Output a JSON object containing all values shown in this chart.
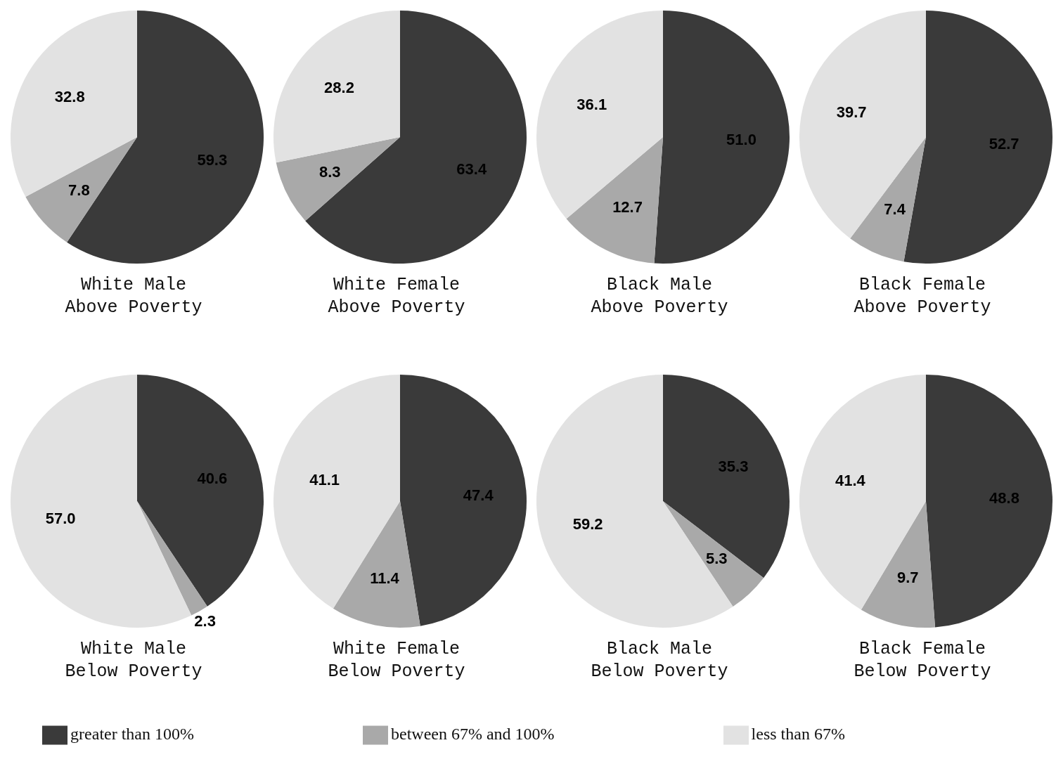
{
  "chart_data": [
    {
      "type": "pie",
      "title": "White Male\nAbove Poverty",
      "categories": [
        null,
        null,
        null
      ],
      "values": [
        59.3,
        7.8,
        32.8
      ],
      "value_labels": [
        "59.3",
        "7.8",
        "32.8"
      ],
      "colors": [
        "#3a3a3a",
        "#a9a9a9",
        "#e2e2e2"
      ]
    },
    {
      "type": "pie",
      "title": "White Female\nAbove Poverty",
      "categories": [
        null,
        null,
        null
      ],
      "values": [
        63.4,
        8.3,
        28.2
      ],
      "value_labels": [
        "63.4",
        "8.3",
        "28.2"
      ],
      "colors": [
        "#3a3a3a",
        "#a9a9a9",
        "#e2e2e2"
      ]
    },
    {
      "type": "pie",
      "title": "Black Male\nAbove Poverty",
      "categories": [
        null,
        null,
        null
      ],
      "values": [
        51.0,
        12.7,
        36.1
      ],
      "value_labels": [
        "51.0",
        "12.7",
        "36.1"
      ],
      "colors": [
        "#3a3a3a",
        "#a9a9a9",
        "#e2e2e2"
      ]
    },
    {
      "type": "pie",
      "title": "Black Female\nAbove Poverty",
      "categories": [
        null,
        null,
        null
      ],
      "values": [
        52.7,
        7.4,
        39.7
      ],
      "value_labels": [
        "52.7",
        "7.4",
        "39.7"
      ],
      "colors": [
        "#3a3a3a",
        "#a9a9a9",
        "#e2e2e2"
      ]
    },
    {
      "type": "pie",
      "title": "White Male\nBelow Poverty",
      "categories": [
        null,
        null,
        null
      ],
      "values": [
        40.6,
        2.3,
        57.0
      ],
      "value_labels": [
        "40.6",
        "2.3",
        "57.0"
      ],
      "colors": [
        "#3a3a3a",
        "#a9a9a9",
        "#e2e2e2"
      ]
    },
    {
      "type": "pie",
      "title": "White Female\nBelow Poverty",
      "categories": [
        null,
        null,
        null
      ],
      "values": [
        47.4,
        11.4,
        41.1
      ],
      "value_labels": [
        "47.4",
        "11.4",
        "41.1"
      ],
      "colors": [
        "#3a3a3a",
        "#a9a9a9",
        "#e2e2e2"
      ]
    },
    {
      "type": "pie",
      "title": "Black Male\nBelow Poverty",
      "categories": [
        null,
        null,
        null
      ],
      "values": [
        35.3,
        5.3,
        59.2
      ],
      "value_labels": [
        "35.3",
        "5.3",
        "59.2"
      ],
      "colors": [
        "#3a3a3a",
        "#a9a9a9",
        "#e2e2e2"
      ]
    },
    {
      "type": "pie",
      "title": "Black Female\nBelow Poverty",
      "categories": [
        "greater than 100%",
        "between 67% and 100%",
        "less than 67%"
      ],
      "values": [
        48.8,
        9.7,
        41.4
      ],
      "value_labels": [
        "48.8",
        "9.7",
        "41.4"
      ],
      "colors": [
        "#3a3a3a",
        "#a9a9a9",
        "#e2e2e2"
      ],
      "legend": "bottom"
    }
  ]
}
